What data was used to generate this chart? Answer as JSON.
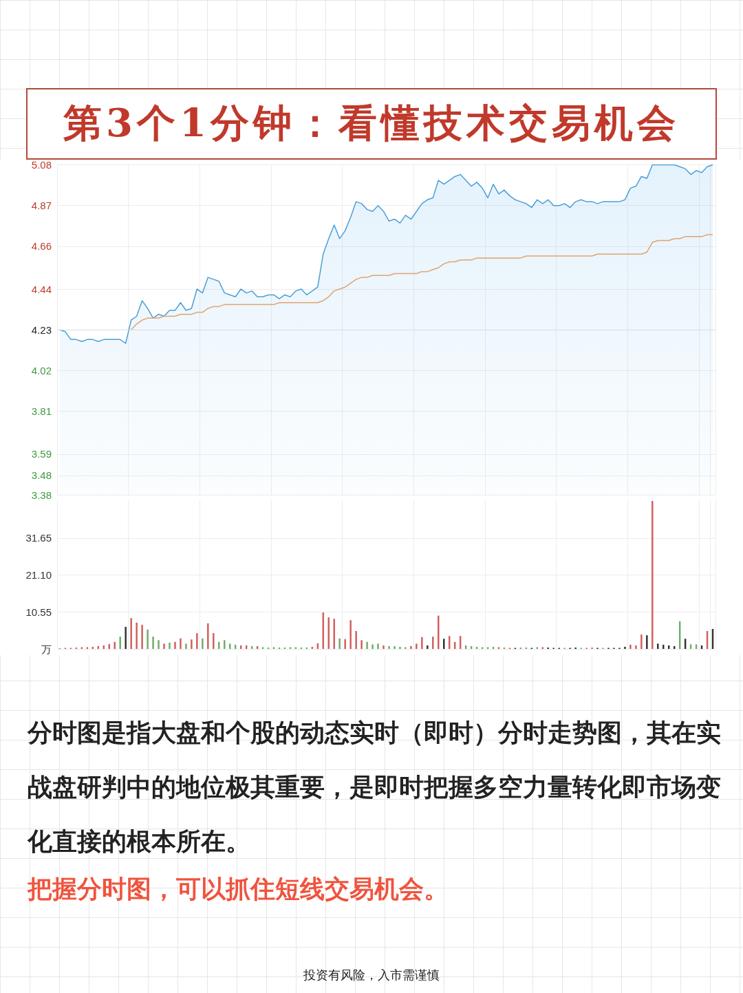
{
  "chart_data": [
    {
      "type": "area",
      "title": "第3个1分钟：看懂技术交易机会",
      "categories": [
        null,
        null,
        null,
        null,
        null,
        null,
        null,
        null,
        null,
        null,
        null,
        null,
        null,
        null,
        null,
        null,
        null,
        null,
        null,
        null,
        null,
        null,
        null,
        null,
        null,
        null,
        null,
        null,
        null,
        null,
        null,
        null,
        null,
        null,
        null,
        null,
        null,
        null,
        null,
        null,
        null,
        null,
        null,
        null,
        null,
        null,
        null,
        null,
        null,
        null,
        null,
        null,
        null,
        null,
        null,
        null,
        null,
        null,
        null,
        null,
        null,
        null,
        null,
        null,
        null,
        null,
        null,
        null,
        null,
        null,
        null,
        null,
        null,
        null,
        null,
        null,
        null,
        null,
        null,
        null,
        null,
        null,
        null,
        null,
        null,
        null,
        null,
        null,
        null,
        null,
        null,
        null,
        null,
        null,
        null,
        null,
        null,
        null,
        null,
        null,
        null,
        null,
        null,
        null,
        null,
        null,
        null,
        null,
        null,
        null,
        null,
        null,
        null,
        null,
        null,
        null,
        null,
        null,
        null,
        null
      ],
      "series": [
        {
          "type": "area",
          "color": "#4a9fd8",
          "values": [
            4.23,
            4.22,
            4.18,
            4.18,
            4.17,
            4.18,
            4.18,
            4.17,
            4.18,
            4.18,
            4.18,
            4.18,
            4.16,
            4.28,
            4.3,
            4.38,
            4.34,
            4.29,
            4.31,
            4.3,
            4.33,
            4.33,
            4.37,
            4.33,
            4.34,
            4.44,
            4.42,
            4.5,
            4.49,
            4.48,
            4.42,
            4.41,
            4.4,
            4.44,
            4.42,
            4.43,
            4.4,
            4.4,
            4.41,
            4.41,
            4.39,
            4.41,
            4.4,
            4.43,
            4.44,
            4.41,
            4.43,
            4.45,
            4.62,
            4.7,
            4.77,
            4.7,
            4.74,
            4.81,
            4.89,
            4.88,
            4.85,
            4.84,
            4.87,
            4.84,
            4.79,
            4.8,
            4.78,
            4.82,
            4.8,
            4.84,
            4.88,
            4.9,
            4.91,
            5.0,
            4.98,
            5.0,
            5.02,
            5.03,
            5.0,
            4.97,
            4.99,
            4.96,
            4.91,
            4.98,
            4.93,
            4.95,
            4.92,
            4.9,
            4.89,
            4.88,
            4.86,
            4.9,
            4.88,
            4.9,
            4.87,
            4.87,
            4.88,
            4.86,
            4.89,
            4.9,
            4.89,
            4.89,
            4.88,
            4.89,
            4.89,
            4.89,
            4.89,
            4.9,
            4.96,
            4.97,
            5.02,
            5.01,
            5.08,
            5.08,
            5.08,
            5.08,
            5.08,
            5.07,
            5.06,
            5.03,
            5.05,
            5.04,
            5.07,
            5.08
          ]
        },
        {
          "type": "line",
          "color": "#e0a370",
          "values": [
            null,
            null,
            null,
            null,
            null,
            null,
            null,
            null,
            null,
            null,
            null,
            null,
            null,
            4.23,
            4.26,
            4.28,
            4.29,
            4.29,
            4.29,
            4.3,
            4.3,
            4.3,
            4.31,
            4.31,
            4.31,
            4.32,
            4.32,
            4.34,
            4.35,
            4.35,
            4.36,
            4.36,
            4.36,
            4.36,
            4.36,
            4.36,
            4.36,
            4.36,
            4.36,
            4.36,
            4.37,
            4.37,
            4.37,
            4.37,
            4.37,
            4.37,
            4.37,
            4.37,
            4.38,
            4.4,
            4.43,
            4.44,
            4.45,
            4.47,
            4.49,
            4.5,
            4.5,
            4.51,
            4.51,
            4.51,
            4.51,
            4.52,
            4.52,
            4.52,
            4.52,
            4.52,
            4.53,
            4.53,
            4.54,
            4.55,
            4.57,
            4.58,
            4.58,
            4.59,
            4.59,
            4.59,
            4.6,
            4.6,
            4.6,
            4.6,
            4.6,
            4.6,
            4.6,
            4.6,
            4.6,
            4.61,
            4.61,
            4.61,
            4.61,
            4.61,
            4.61,
            4.61,
            4.61,
            4.61,
            4.61,
            4.61,
            4.61,
            4.61,
            4.62,
            4.62,
            4.62,
            4.62,
            4.62,
            4.62,
            4.62,
            4.62,
            4.62,
            4.63,
            4.68,
            4.69,
            4.69,
            4.69,
            4.7,
            4.7,
            4.71,
            4.71,
            4.71,
            4.71,
            4.72,
            4.72
          ]
        }
      ],
      "ylim": [
        3.38,
        5.08
      ],
      "yticks": [
        3.38,
        3.48,
        3.59,
        3.81,
        4.02,
        4.23,
        4.44,
        4.66,
        4.87,
        5.08
      ],
      "ref_lines": [
        {
          "axis": "y",
          "value": 4.23,
          "color": "#d6dbe0"
        }
      ],
      "grid": true
    },
    {
      "type": "bar",
      "categories": [
        null,
        null,
        null,
        null,
        null,
        null,
        null,
        null,
        null,
        null,
        null,
        null,
        null,
        null,
        null,
        null,
        null,
        null,
        null,
        null,
        null,
        null,
        null,
        null,
        null,
        null,
        null,
        null,
        null,
        null,
        null,
        null,
        null,
        null,
        null,
        null,
        null,
        null,
        null,
        null,
        null,
        null,
        null,
        null,
        null,
        null,
        null,
        null,
        null,
        null,
        null,
        null,
        null,
        null,
        null,
        null,
        null,
        null,
        null,
        null,
        null,
        null,
        null,
        null,
        null,
        null,
        null,
        null,
        null,
        null,
        null,
        null,
        null,
        null,
        null,
        null,
        null,
        null,
        null,
        null,
        null,
        null,
        null,
        null,
        null,
        null,
        null,
        null,
        null,
        null,
        null,
        null,
        null,
        null,
        null,
        null,
        null,
        null,
        null,
        null,
        null,
        null,
        null,
        null,
        null,
        null,
        null,
        null,
        null,
        null,
        null,
        null,
        null,
        null,
        null,
        null,
        null,
        null,
        null,
        null
      ],
      "values": [
        0.2,
        0.3,
        0.3,
        0.4,
        0.5,
        0.5,
        0.6,
        0.8,
        1.0,
        1.4,
        2.0,
        3.5,
        6.3,
        8.8,
        7.5,
        6.9,
        5.5,
        3.5,
        2.5,
        1.5,
        1.8,
        2.0,
        3.0,
        1.5,
        2.7,
        4.5,
        3.0,
        7.3,
        4.5,
        2.0,
        2.5,
        1.5,
        1.2,
        1.0,
        1.0,
        0.8,
        0.8,
        0.5,
        0.4,
        0.5,
        0.4,
        0.4,
        0.5,
        0.5,
        0.4,
        0.4,
        0.6,
        1.6,
        10.4,
        9.0,
        8.6,
        3.0,
        2.8,
        8.2,
        5.1,
        2.5,
        2.0,
        1.3,
        1.5,
        1.0,
        0.8,
        0.8,
        0.6,
        0.5,
        0.8,
        1.5,
        3.4,
        1.0,
        3.5,
        9.5,
        2.9,
        3.7,
        2.0,
        3.7,
        1.0,
        0.8,
        0.6,
        0.5,
        0.5,
        0.6,
        0.5,
        0.4,
        0.3,
        0.3,
        0.4,
        0.4,
        0.3,
        0.5,
        0.5,
        0.4,
        0.3,
        0.3,
        0.3,
        0.3,
        0.4,
        0.3,
        0.3,
        0.4,
        0.3,
        0.3,
        0.3,
        0.3,
        0.3,
        0.6,
        1.2,
        1.0,
        4.1,
        3.9,
        42.2,
        1.5,
        1.2,
        1.0,
        0.8,
        7.9,
        2.9,
        1.3,
        1.3,
        1.0,
        5.1,
        5.7
      ],
      "colors": [
        "#d0605e",
        "#d0605e",
        "#d0605e",
        "#d0605e",
        "#d0605e",
        "#d0605e",
        "#d0605e",
        "#d0605e",
        "#d0605e",
        "#d0605e",
        "#d0605e",
        "#6fae6a",
        "#333333",
        "#d0605e",
        "#d0605e",
        "#d0605e",
        "#6fae6a",
        "#6fae6a",
        "#6fae6a",
        "#d0605e",
        "#6fae6a",
        "#d0605e",
        "#d0605e",
        "#6fae6a",
        "#d0605e",
        "#d0605e",
        "#6fae6a",
        "#d0605e",
        "#d0605e",
        "#6fae6a",
        "#6fae6a",
        "#6fae6a",
        "#6fae6a",
        "#d0605e",
        "#d0605e",
        "#6fae6a",
        "#d0605e",
        "#6fae6a",
        "#6fae6a",
        "#6fae6a",
        "#6fae6a",
        "#6fae6a",
        "#6fae6a",
        "#6fae6a",
        "#6fae6a",
        "#6fae6a",
        "#d0605e",
        "#d0605e",
        "#d0605e",
        "#d0605e",
        "#d0605e",
        "#6fae6a",
        "#d0605e",
        "#d0605e",
        "#d0605e",
        "#d0605e",
        "#6fae6a",
        "#6fae6a",
        "#6fae6a",
        "#d0605e",
        "#6fae6a",
        "#6fae6a",
        "#6fae6a",
        "#6fae6a",
        "#d0605e",
        "#d0605e",
        "#d0605e",
        "#333333",
        "#d0605e",
        "#d0605e",
        "#333333",
        "#d0605e",
        "#d0605e",
        "#d0605e",
        "#6fae6a",
        "#6fae6a",
        "#6fae6a",
        "#6fae6a",
        "#6fae6a",
        "#6fae6a",
        "#d0605e",
        "#6fae6a",
        "#d0605e",
        "#333333",
        "#6fae6a",
        "#6fae6a",
        "#333333",
        "#6fae6a",
        "#d0605e",
        "#333333",
        "#333333",
        "#333333",
        "#6fae6a",
        "#333333",
        "#333333",
        "#6fae6a",
        "#d0605e",
        "#d0605e",
        "#333333",
        "#6fae6a",
        "#333333",
        "#333333",
        "#333333",
        "#333333",
        "#d0605e",
        "#d0605e",
        "#d0605e",
        "#333333",
        "#d0605e",
        "#333333",
        "#333333",
        "#333333",
        "#333333",
        "#6fae6a",
        "#333333",
        "#6fae6a",
        "#6fae6a",
        "#333333",
        "#d0605e",
        "#333333"
      ],
      "ylim": [
        0,
        42.4
      ],
      "yticks": [
        {
          "value": 0,
          "label": "万"
        },
        10.55,
        {
          "value": 21.1,
          "label": "21.10"
        },
        31.65
      ],
      "grid": true,
      "annotations": [
        "分时图是指大盘和个股的动态实时（即时）分时走势图，其在实战盘研判中的地位极其重要，是即时把握多空力量转化即市场变化直接的根本所在。",
        "把握分时图，可以抓住短线交易机会。",
        "投资有风险，入市需谨慎"
      ]
    }
  ]
}
